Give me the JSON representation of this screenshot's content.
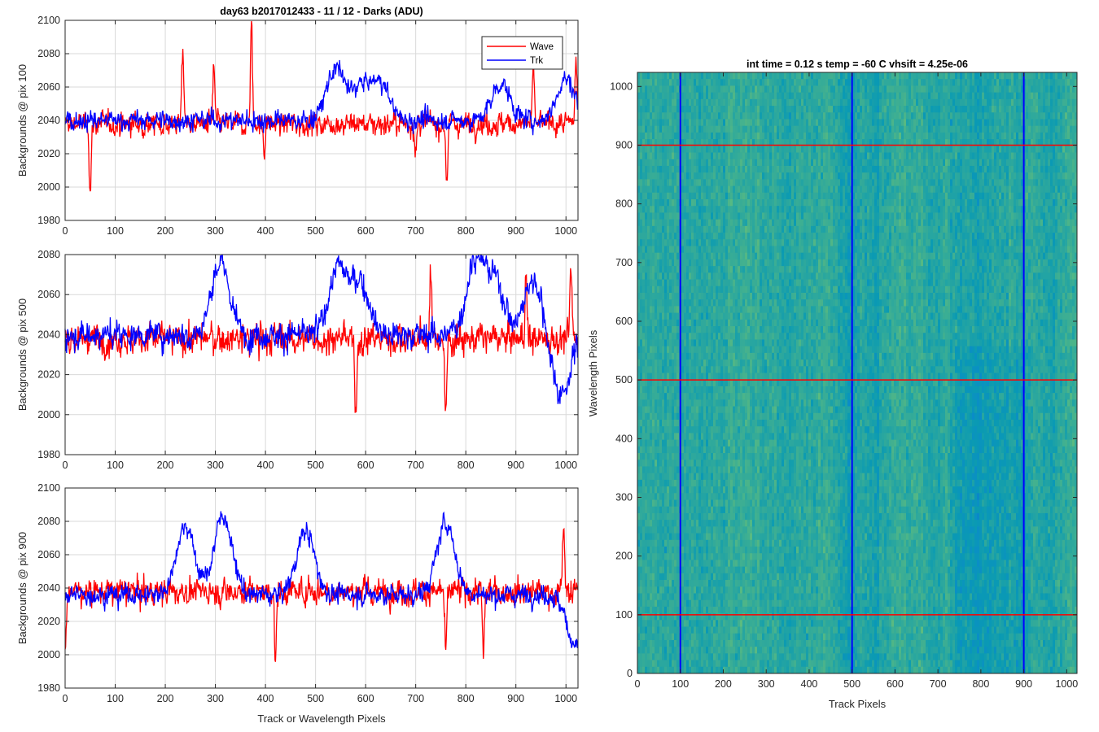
{
  "figure_title": "day63 b2017012433 - 11 / 12 - Darks (ADU)",
  "colors": {
    "wave": "#ff0000",
    "trk": "#0000ff",
    "grid": "#d9d9d9",
    "axis": "#262626",
    "image_base": "#2aa6a4"
  },
  "chart_data": [
    {
      "type": "line",
      "title": "day63 b2017012433 - 11 / 12 - Darks (ADU)",
      "xlabel": "",
      "ylabel": "Backgrounds @ pix 100",
      "xlim": [
        0,
        1024
      ],
      "ylim": [
        1980,
        2100
      ],
      "xticks": [
        0,
        100,
        200,
        300,
        400,
        500,
        600,
        700,
        800,
        900,
        1000
      ],
      "yticks": [
        1980,
        2000,
        2020,
        2040,
        2060,
        2080,
        2100
      ],
      "grid": true,
      "legend": {
        "position": "top-right",
        "entries": [
          "Wave",
          "Trk"
        ]
      },
      "series": [
        {
          "name": "Wave",
          "color": "#ff0000",
          "baseline": 2038,
          "noise": 7,
          "features": [
            [
              50,
              1999
            ],
            [
              235,
              2084
            ],
            [
              297,
              2070
            ],
            [
              372,
              2098
            ],
            [
              398,
              2022
            ],
            [
              700,
              2018
            ],
            [
              762,
              2004
            ],
            [
              935,
              2070
            ],
            [
              1020,
              2076
            ]
          ]
        },
        {
          "name": "Trk",
          "color": "#0000ff",
          "baseline": 2040,
          "noise": 6,
          "features": [
            [
              540,
              2071
            ],
            [
              590,
              2060
            ],
            [
              630,
              2062
            ],
            [
              870,
              2062
            ],
            [
              1000,
              2065
            ]
          ]
        }
      ]
    },
    {
      "type": "line",
      "xlabel": "",
      "ylabel": "Backgrounds @ pix 500",
      "xlim": [
        0,
        1024
      ],
      "ylim": [
        1980,
        2080
      ],
      "xticks": [
        0,
        100,
        200,
        300,
        400,
        500,
        600,
        700,
        800,
        900,
        1000
      ],
      "yticks": [
        1980,
        2000,
        2020,
        2040,
        2060,
        2080
      ],
      "grid": true,
      "series": [
        {
          "name": "Wave",
          "color": "#ff0000",
          "baseline": 2038,
          "noise": 8,
          "features": [
            [
              580,
              1996
            ],
            [
              760,
              1996
            ],
            [
              730,
              2068
            ],
            [
              920,
              2070
            ],
            [
              1010,
              2072
            ]
          ]
        },
        {
          "name": "Trk",
          "color": "#0000ff",
          "baseline": 2040,
          "noise": 7,
          "features": [
            [
              310,
              2076
            ],
            [
              545,
              2074
            ],
            [
              590,
              2066
            ],
            [
              820,
              2078
            ],
            [
              860,
              2066
            ],
            [
              935,
              2068
            ],
            [
              990,
              2010
            ]
          ]
        }
      ]
    },
    {
      "type": "line",
      "xlabel": "Track or Wavelength Pixels",
      "ylabel": "Backgrounds @ pix 900",
      "xlim": [
        0,
        1024
      ],
      "ylim": [
        1980,
        2100
      ],
      "xticks": [
        0,
        100,
        200,
        300,
        400,
        500,
        600,
        700,
        800,
        900,
        1000
      ],
      "yticks": [
        1980,
        2000,
        2020,
        2040,
        2060,
        2080,
        2100
      ],
      "grid": true,
      "series": [
        {
          "name": "Wave",
          "color": "#ff0000",
          "baseline": 2038,
          "noise": 8,
          "features": [
            [
              0,
              2000
            ],
            [
              420,
              1996
            ],
            [
              760,
              1998
            ],
            [
              835,
              1998
            ],
            [
              995,
              2076
            ]
          ]
        },
        {
          "name": "Trk",
          "color": "#0000ff",
          "baseline": 2036,
          "noise": 6,
          "features": [
            [
              240,
              2078
            ],
            [
              315,
              2083
            ],
            [
              480,
              2074
            ],
            [
              760,
              2079
            ],
            [
              1020,
              2006
            ]
          ]
        }
      ]
    },
    {
      "type": "heatmap",
      "title": "int time = 0.12 s    temp = -60 C    vhsift = 4.25e-06",
      "xlabel": "Track Pixels",
      "ylabel": "Wavelength Pixels",
      "xlim": [
        0,
        1024
      ],
      "ylim": [
        0,
        1024
      ],
      "xticks": [
        0,
        100,
        200,
        300,
        400,
        500,
        600,
        700,
        800,
        900,
        1000
      ],
      "yticks": [
        0,
        100,
        200,
        300,
        400,
        500,
        600,
        700,
        800,
        900,
        1000
      ],
      "vertical_lines": {
        "x": [
          100,
          500,
          900
        ],
        "color": "#0000ff"
      },
      "horizontal_lines": {
        "y": [
          100,
          500,
          900
        ],
        "color": "#ff0000"
      }
    }
  ]
}
